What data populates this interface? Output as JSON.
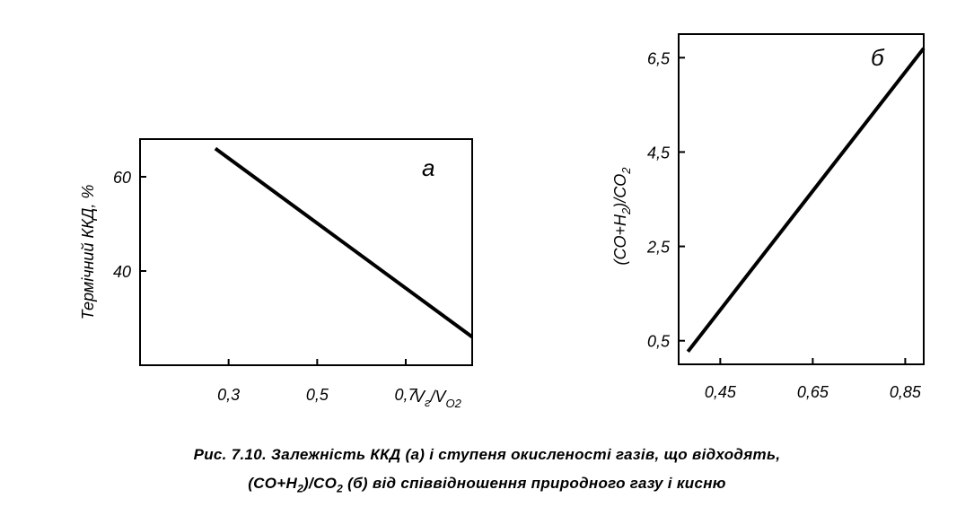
{
  "chart_data": [
    {
      "type": "line",
      "panel_label": "а",
      "ylabel": "Термічний ККД, %",
      "xlabel": "V_г/V_O2",
      "xlabel_parts": {
        "V": "V",
        "sub_g": "г",
        "slash": "/V",
        "sub_o2": "O2"
      },
      "x_ticks": [
        "0,3",
        "0,5",
        "0,7"
      ],
      "x_tick_values": [
        0.3,
        0.5,
        0.7
      ],
      "y_ticks": [
        "60",
        "40"
      ],
      "y_tick_values": [
        60,
        40
      ],
      "xlim": [
        0.1,
        0.85
      ],
      "ylim": [
        20,
        68
      ],
      "series": [
        {
          "x": [
            0.27,
            0.85
          ],
          "y": [
            66,
            26
          ]
        }
      ]
    },
    {
      "type": "line",
      "panel_label": "б",
      "ylabel_parts": {
        "a": "(CO+H",
        "sub1": "2",
        "b": ")/CO",
        "sub2": "2"
      },
      "x_ticks": [
        "0,45",
        "0,65",
        "0,85"
      ],
      "x_tick_values": [
        0.45,
        0.65,
        0.85
      ],
      "y_ticks": [
        "6,5",
        "4,5",
        "2,5",
        "0,5"
      ],
      "y_tick_values": [
        6.5,
        4.5,
        2.5,
        0.5
      ],
      "xlim": [
        0.36,
        0.89
      ],
      "ylim": [
        0.0,
        7.0
      ],
      "series": [
        {
          "x": [
            0.38,
            0.89
          ],
          "y": [
            0.27,
            6.7
          ]
        }
      ]
    }
  ],
  "caption": {
    "line1": "Рис. 7.10. Залежність ККД (а) і ступеня окисленості газів, що відходять,",
    "line2_a": "(CO+H",
    "line2_sub1": "2",
    "line2_b": ")/CO",
    "line2_sub2": "2",
    "line2_c": " (б) від співвідношення природного газу і кисню"
  }
}
